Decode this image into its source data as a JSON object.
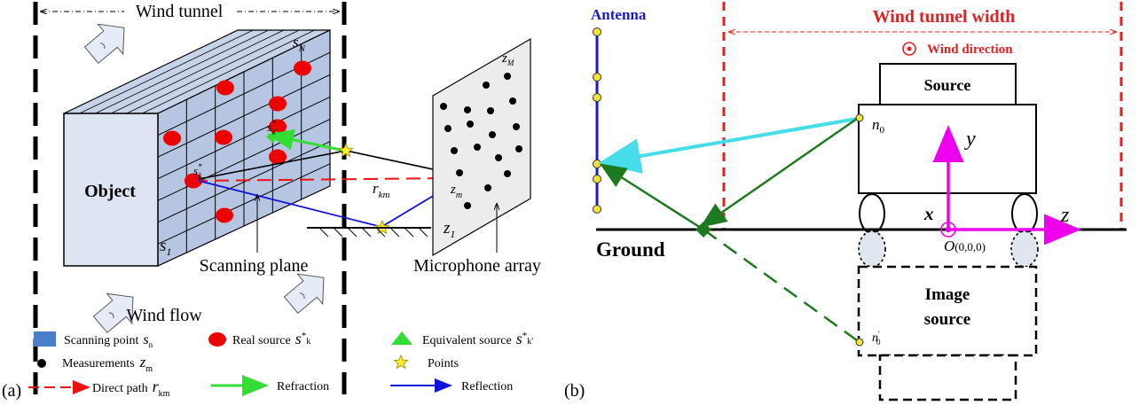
{
  "panel_a": {
    "panel_label": "(a)",
    "wind_tunnel": "Wind tunnel",
    "object": "Object",
    "scan_top_label": "s",
    "scan_top_sub": "N",
    "scan_bottom_label": "s",
    "scan_bottom_sub": "1",
    "src_k_label": "s",
    "src_k_sup": "*",
    "src_k_sub": "k",
    "src_kp_label": "s",
    "src_kp_sup": "*",
    "src_kp_sub": "k'",
    "rkm": "r",
    "rkm_sub": "km",
    "zm": "z",
    "zm_sub": "m",
    "zM": "z",
    "zM_sub": "M",
    "z1": "z",
    "z1_sub": "1",
    "scanning_plane": "Scanning plane",
    "microphone_array": "Microphone array",
    "wind_flow": "Wind flow",
    "legend": {
      "scanning_point": "Scanning point",
      "scanning_point_sym": "s",
      "scanning_point_sub": "n",
      "real_source": "Real source",
      "real_source_sym": "s",
      "real_source_sup": "*",
      "real_source_sub": "k",
      "equivalent_source": "Equivalent source",
      "equivalent_source_sym": "s",
      "equivalent_source_sup": "*",
      "equivalent_source_sub": "k'",
      "measurements": "Measurements",
      "measurements_sym": "z",
      "measurements_sub": "m",
      "points": "Points",
      "direct_path": "Direct path",
      "direct_path_sym": "r",
      "direct_path_sub": "km",
      "refraction": "Refraction",
      "reflection": "Reflection"
    },
    "colors": {
      "cube_face": "#b6c6e2",
      "cube_front": "#dde4f2",
      "real_source": "#ee0000",
      "refraction": "#33dd33",
      "reflection": "#1111dd",
      "direct_path": "#ee1111",
      "point_star": "#ffee33"
    }
  },
  "panel_b": {
    "panel_label": "(b)",
    "antenna": "Antenna",
    "wind_tunnel_width": "Wind tunnel width",
    "wind_direction": "Wind direction",
    "source": "Source",
    "n0": "n",
    "n0_sub": "0",
    "n0p": "n",
    "n0p_sub": "0",
    "n0p_prime": "′",
    "y": "y",
    "x": "x",
    "z": "z",
    "origin": "O",
    "origin_coords": "(0,0,0)",
    "ground": "Ground",
    "image_source_line1": "Image",
    "image_source_line2": "source",
    "colors": {
      "antenna": "#1a1acc",
      "antenna_nodes": "#f2e23a",
      "tunnel": "#dd2222",
      "cyan_ray": "#44dde8",
      "green_ray": "#1e7a1e",
      "axes": "#ee00ee"
    }
  }
}
